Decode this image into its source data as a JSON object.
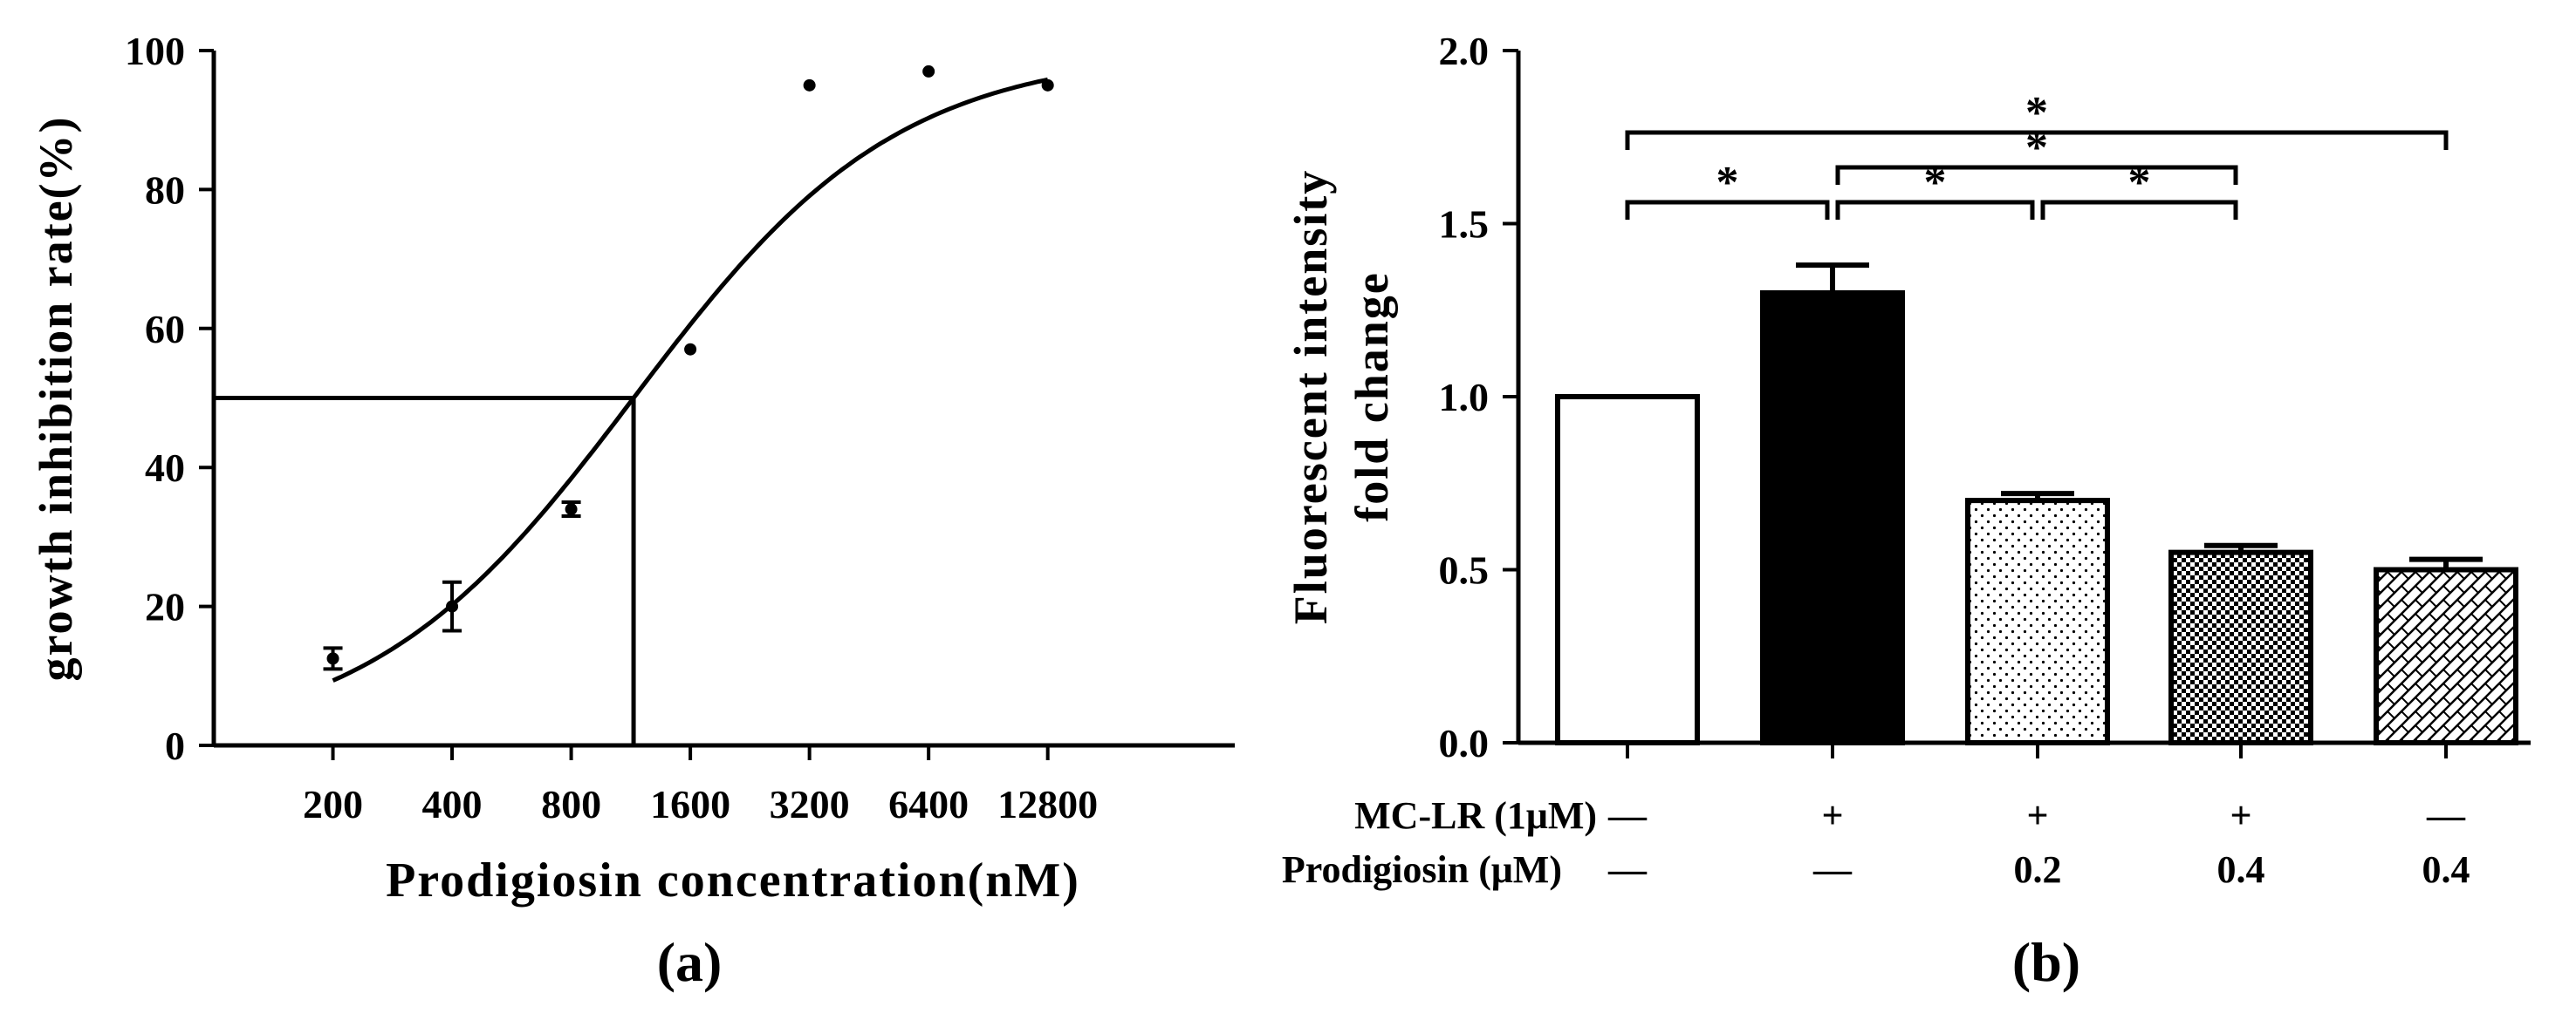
{
  "chart_data": [
    {
      "panel_label": "(a)",
      "type": "scatter",
      "xlabel": "Prodigiosin concentration(nM)",
      "ylabel": "growth inhibition rate(%)",
      "x_scale": "log2",
      "xlim": [
        100,
        38000
      ],
      "ylim": [
        0,
        100
      ],
      "x_ticks": [
        200,
        400,
        800,
        1600,
        3200,
        6400,
        12800
      ],
      "x_tick_labels": [
        "200",
        "400",
        "800",
        "1600",
        "3200",
        "6400",
        "12800"
      ],
      "y_ticks": [
        0,
        20,
        40,
        60,
        80,
        100
      ],
      "y_tick_labels": [
        "0",
        "20",
        "40",
        "60",
        "80",
        "100"
      ],
      "points": [
        {
          "x": 200,
          "y": 12.5,
          "err": 1.5
        },
        {
          "x": 400,
          "y": 20,
          "err": 3.5
        },
        {
          "x": 800,
          "y": 34,
          "err": 1
        },
        {
          "x": 1600,
          "y": 57,
          "err": 0
        },
        {
          "x": 3200,
          "y": 95,
          "err": 0
        },
        {
          "x": 6400,
          "y": 97,
          "err": 0
        },
        {
          "x": 12800,
          "y": 95,
          "err": 0
        }
      ],
      "fit": {
        "model": "sigmoid",
        "bottom": 0,
        "top": 100,
        "ic50": 1150,
        "hill": 1.3,
        "x_range": [
          200,
          12800
        ]
      },
      "ic50_guide": {
        "x": 1150,
        "y": 50
      }
    },
    {
      "panel_label": "(b)",
      "type": "bar",
      "ylabel_lines": [
        "Fluorescent intensity",
        "fold change"
      ],
      "ylim": [
        0,
        2.0
      ],
      "y_ticks": [
        0,
        0.5,
        1.0,
        1.5,
        2.0
      ],
      "y_tick_labels": [
        "0.0",
        "0.5",
        "1.0",
        "1.5",
        "2.0"
      ],
      "values": [
        1.0,
        1.3,
        0.7,
        0.55,
        0.5
      ],
      "errors": [
        0,
        0.08,
        0.02,
        0.02,
        0.03
      ],
      "fills": [
        "white",
        "black",
        "dots",
        "checker",
        "crosshatch"
      ],
      "row_labels": [
        "MC-LR (1μM)",
        "Prodigiosin (μM)"
      ],
      "mclr_row": [
        "—",
        "+",
        "+",
        "+",
        "—"
      ],
      "prodigiosin_row": [
        "—",
        "—",
        "0.2",
        "0.4",
        "0.4"
      ],
      "significance": [
        {
          "from": 0,
          "to": 1,
          "level": 1,
          "label": "*"
        },
        {
          "from": 1,
          "to": 2,
          "level": 1,
          "label": "*"
        },
        {
          "from": 2,
          "to": 3,
          "level": 1,
          "label": "*"
        },
        {
          "from": 1,
          "to": 3,
          "level": 2,
          "label": "*"
        },
        {
          "from": 0,
          "to": 4,
          "level": 3,
          "label": "*"
        }
      ]
    }
  ]
}
